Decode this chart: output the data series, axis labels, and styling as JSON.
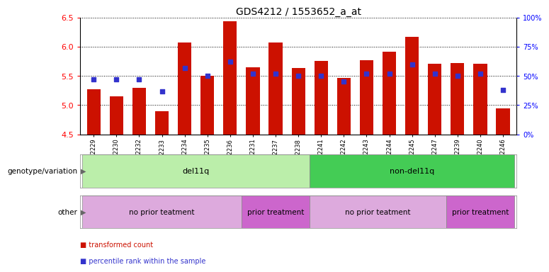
{
  "title": "GDS4212 / 1553652_a_at",
  "samples": [
    "GSM652229",
    "GSM652230",
    "GSM652232",
    "GSM652233",
    "GSM652234",
    "GSM652235",
    "GSM652236",
    "GSM652231",
    "GSM652237",
    "GSM652238",
    "GSM652241",
    "GSM652242",
    "GSM652243",
    "GSM652244",
    "GSM652245",
    "GSM652247",
    "GSM652239",
    "GSM652240",
    "GSM652246"
  ],
  "bar_values": [
    5.27,
    5.15,
    5.29,
    4.9,
    6.07,
    5.5,
    6.43,
    5.65,
    6.07,
    5.64,
    5.76,
    5.47,
    5.77,
    5.91,
    6.17,
    5.71,
    5.72,
    5.71,
    4.95
  ],
  "percentile_values": [
    47,
    47,
    47,
    37,
    57,
    50,
    62,
    52,
    52,
    50,
    50,
    45,
    52,
    52,
    60,
    52,
    50,
    52,
    38
  ],
  "ylim_left": [
    4.5,
    6.5
  ],
  "ylim_right": [
    0,
    100
  ],
  "bar_color": "#cc1100",
  "dot_color": "#3333cc",
  "bar_bottom": 4.5,
  "right_ticks": [
    0,
    25,
    50,
    75,
    100
  ],
  "right_tick_labels": [
    "0%",
    "25%",
    "50%",
    "75%",
    "100%"
  ],
  "left_ticks": [
    4.5,
    5.0,
    5.5,
    6.0,
    6.5
  ],
  "genotype_groups": [
    {
      "label": "del11q",
      "start": 0,
      "end": 9,
      "color": "#bbeeaa"
    },
    {
      "label": "non-del11q",
      "start": 10,
      "end": 18,
      "color": "#44cc55"
    }
  ],
  "other_groups": [
    {
      "label": "no prior teatment",
      "start": 0,
      "end": 6,
      "color": "#ddaadd"
    },
    {
      "label": "prior treatment",
      "start": 7,
      "end": 9,
      "color": "#cc66cc"
    },
    {
      "label": "no prior teatment",
      "start": 10,
      "end": 15,
      "color": "#ddaadd"
    },
    {
      "label": "prior treatment",
      "start": 16,
      "end": 18,
      "color": "#cc66cc"
    }
  ],
  "legend_items": [
    {
      "color": "#cc1100",
      "label": "transformed count"
    },
    {
      "color": "#3333cc",
      "label": "percentile rank within the sample"
    }
  ],
  "genotype_label": "genotype/variation",
  "other_label": "other",
  "background_color": "#ffffff",
  "title_fontsize": 10
}
